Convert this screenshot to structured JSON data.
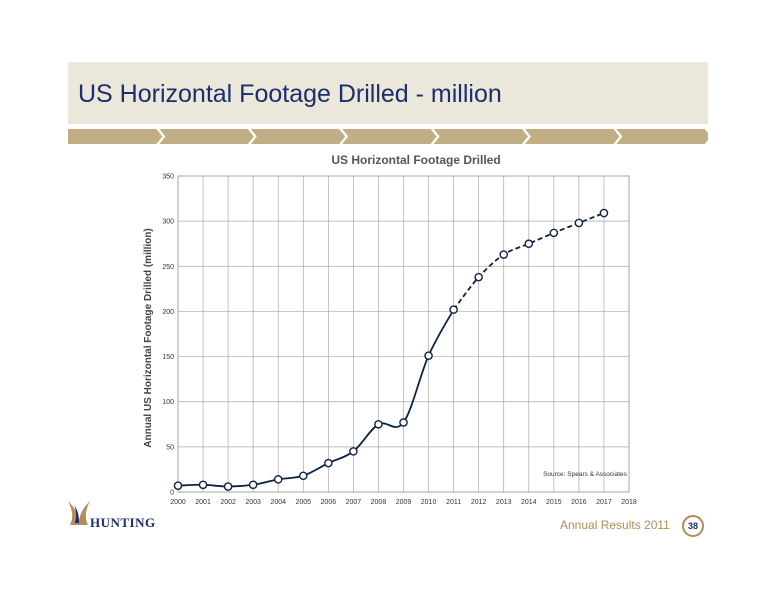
{
  "slide": {
    "title": "US Horizontal Footage Drilled - million",
    "footer": "Annual Results 2011",
    "page_number": "38",
    "logo_text": "HUNTING"
  },
  "colors": {
    "title": "#1a2f6b",
    "header_band": "#ebe7db",
    "chevron": "#c2ae84",
    "line": "#0d2247",
    "footer": "#b08d5a"
  },
  "icons": {
    "logo": "hunting-stag-logo-icon"
  },
  "chart_data": {
    "type": "line",
    "title": "US Horizontal Footage Drilled",
    "ylabel": "Annual US Horizontal Footage Drilled (million)",
    "xlabel": "",
    "annotation": "Source: Spears & Associates",
    "x_ticks": [
      "2000",
      "2001",
      "2002",
      "2003",
      "2004",
      "2005",
      "2006",
      "2007",
      "2008",
      "2009",
      "2010",
      "2011",
      "2012",
      "2013",
      "2014",
      "2015",
      "2016",
      "2017",
      "2018"
    ],
    "y_ticks": [
      "0",
      "50",
      "100",
      "150",
      "200",
      "250",
      "300",
      "350"
    ],
    "xlim": [
      2000,
      2018
    ],
    "ylim": [
      0,
      350
    ],
    "grid": true,
    "legend": "none",
    "series": [
      {
        "style": "solid",
        "x": [
          2000,
          2001,
          2002,
          2003,
          2004,
          2005,
          2006,
          2007,
          2008,
          2009,
          2010,
          2011
        ],
        "y": [
          7,
          8,
          6,
          8,
          14,
          18,
          32,
          45,
          75,
          77,
          151,
          202
        ]
      },
      {
        "style": "dashed",
        "x": [
          2011,
          2012,
          2013,
          2014,
          2015,
          2016,
          2017
        ],
        "y": [
          202,
          238,
          263,
          275,
          287,
          298,
          309
        ]
      }
    ]
  }
}
